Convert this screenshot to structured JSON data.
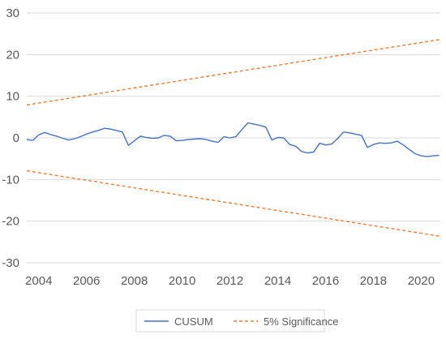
{
  "chart_data": {
    "type": "line",
    "title": "",
    "xlabel": "",
    "ylabel": "",
    "ylim": [
      -30,
      30
    ],
    "yticks": [
      -30,
      -20,
      -10,
      0,
      10,
      20,
      30
    ],
    "xlim": [
      2003.5,
      2020.8
    ],
    "xticks": [
      2004,
      2006,
      2008,
      2010,
      2012,
      2014,
      2016,
      2018,
      2020
    ],
    "xtick_labels": [
      "2004",
      "2006",
      "2008",
      "2010",
      "2012",
      "2014",
      "2016",
      "2018",
      "2020"
    ],
    "ytick_labels": [
      "-30",
      "-20",
      "-10",
      "0",
      "10",
      "20",
      "30"
    ],
    "grid": {
      "horizontal": true,
      "vertical": false
    },
    "legend": {
      "position": "bottom"
    },
    "series": [
      {
        "name": "CUSUM",
        "color": "#4472c4",
        "style": "solid",
        "x": [
          2003.5,
          2003.75,
          2004.0,
          2004.25,
          2004.5,
          2004.75,
          2005.0,
          2005.25,
          2005.5,
          2005.75,
          2006.0,
          2006.25,
          2006.5,
          2006.75,
          2007.0,
          2007.25,
          2007.5,
          2007.75,
          2008.0,
          2008.25,
          2008.5,
          2008.75,
          2009.0,
          2009.25,
          2009.5,
          2009.75,
          2010.0,
          2010.25,
          2010.5,
          2010.75,
          2011.0,
          2011.25,
          2011.5,
          2011.75,
          2012.0,
          2012.25,
          2012.5,
          2012.75,
          2013.0,
          2013.25,
          2013.5,
          2013.75,
          2014.0,
          2014.25,
          2014.5,
          2014.75,
          2015.0,
          2015.25,
          2015.5,
          2015.75,
          2016.0,
          2016.25,
          2016.5,
          2016.75,
          2017.0,
          2017.25,
          2017.5,
          2017.75,
          2018.0,
          2018.25,
          2018.5,
          2018.75,
          2019.0,
          2019.25,
          2019.5,
          2019.75,
          2020.0,
          2020.25,
          2020.5,
          2020.75
        ],
        "values": [
          -0.4,
          -0.6,
          0.7,
          1.3,
          0.8,
          0.4,
          -0.1,
          -0.5,
          -0.2,
          0.3,
          0.9,
          1.4,
          1.8,
          2.3,
          2.1,
          1.8,
          1.4,
          -1.8,
          -0.7,
          0.4,
          0.1,
          -0.1,
          0.0,
          0.6,
          0.4,
          -0.7,
          -0.6,
          -0.4,
          -0.3,
          -0.2,
          -0.4,
          -0.8,
          -1.1,
          0.3,
          0.0,
          0.3,
          2.0,
          3.6,
          3.3,
          3.0,
          2.6,
          -0.5,
          0.1,
          0.0,
          -1.6,
          -2.0,
          -3.3,
          -3.6,
          -3.4,
          -1.3,
          -1.7,
          -1.5,
          -0.2,
          1.4,
          1.2,
          0.9,
          0.6,
          -2.3,
          -1.6,
          -1.2,
          -1.3,
          -1.2,
          -0.8,
          -1.7,
          -2.8,
          -3.8,
          -4.3,
          -4.5,
          -4.3,
          -4.2
        ]
      },
      {
        "name": "5% Significance",
        "color": "#ed7d31",
        "style": "dashed",
        "x": [
          2003.5,
          2020.75
        ],
        "values": [
          7.9,
          23.6
        ]
      },
      {
        "name": "",
        "color": "#ed7d31",
        "style": "dashed",
        "x": [
          2003.5,
          2020.75
        ],
        "values": [
          -7.9,
          -23.6
        ]
      }
    ]
  }
}
